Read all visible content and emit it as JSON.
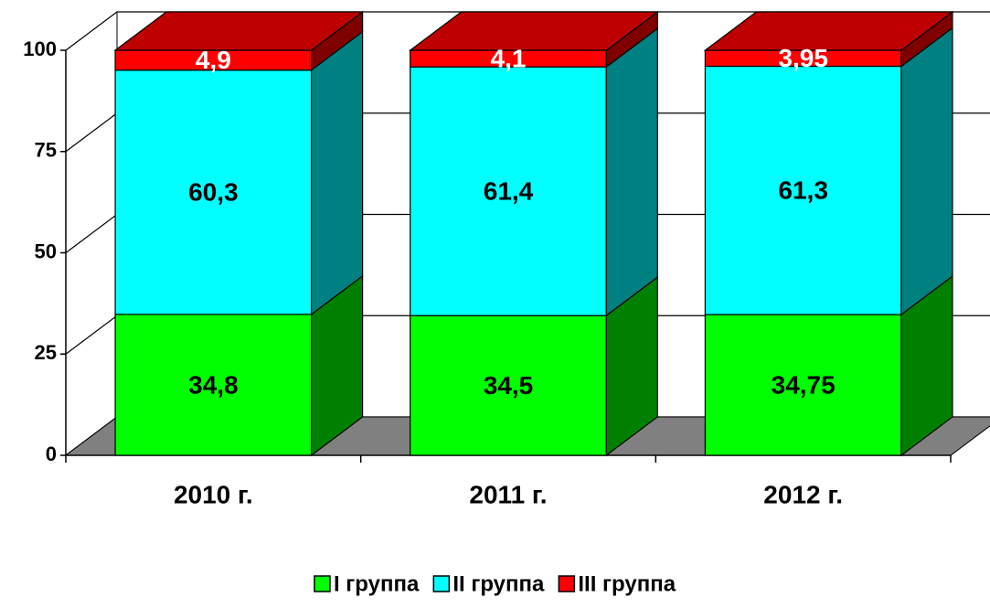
{
  "chart_data": {
    "type": "bar3d_stacked",
    "categories": [
      "2010 г.",
      "2011 г.",
      "2012 г."
    ],
    "series": [
      {
        "name": "I группа",
        "color": "#00ff00",
        "label_color": "#000000",
        "values": [
          34.8,
          34.5,
          34.75
        ],
        "value_labels": [
          "34,8",
          "34,5",
          "34,75"
        ]
      },
      {
        "name": "II группа",
        "color": "#00ffff",
        "label_color": "#000000",
        "values": [
          60.3,
          61.4,
          61.3
        ],
        "value_labels": [
          "60,3",
          "61,4",
          "61,3"
        ]
      },
      {
        "name": "III группа",
        "color": "#ff0000",
        "label_color": "#ffffff",
        "values": [
          4.9,
          4.1,
          3.95
        ],
        "value_labels": [
          "4,9",
          "4,1",
          "3,95"
        ]
      }
    ],
    "ylim": [
      0,
      100
    ],
    "yticks": [
      0,
      25,
      50,
      75,
      100
    ],
    "grid": true,
    "legend": "bottom"
  }
}
